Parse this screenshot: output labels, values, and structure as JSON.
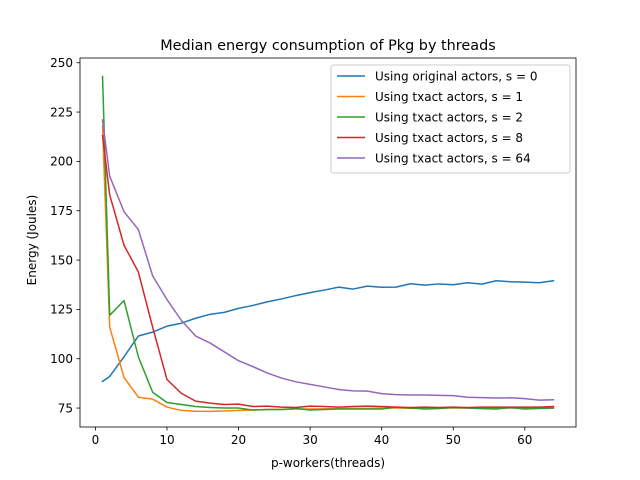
{
  "chart_data": {
    "type": "line",
    "title": "Median energy consumption of Pkg by threads",
    "xlabel": "p-workers(threads)",
    "ylabel": "Energy (Joules)",
    "xlim": [
      -2.15,
      67.15
    ],
    "ylim": [
      65.4,
      252.4
    ],
    "xticks": [
      0,
      10,
      20,
      30,
      40,
      50,
      60
    ],
    "yticks": [
      75,
      100,
      125,
      150,
      175,
      200,
      225,
      250
    ],
    "grid": false,
    "legend_position": "top-right",
    "series": [
      {
        "name": "Using original actors, s = 0",
        "color": "#1f77b4",
        "x": [
          1,
          2,
          4,
          6,
          8,
          10,
          12,
          14,
          16,
          18,
          20,
          22,
          24,
          26,
          28,
          30,
          32,
          34,
          36,
          38,
          40,
          42,
          44,
          46,
          48,
          50,
          52,
          54,
          56,
          58,
          60,
          62,
          64
        ],
        "y": [
          88.5,
          91,
          101,
          111.5,
          113.5,
          116.5,
          118,
          120.5,
          122.5,
          123.5,
          125.5,
          127,
          128.8,
          130.3,
          132,
          133.5,
          134.8,
          136.3,
          135.3,
          136.8,
          136.2,
          136.3,
          138,
          137.3,
          137.9,
          137.5,
          138.5,
          137.8,
          139.5,
          139,
          138.8,
          138.5,
          139.5
        ]
      },
      {
        "name": "Using txact actors, s = 1",
        "color": "#ff7f0e",
        "x": [
          1,
          2,
          4,
          6,
          8,
          10,
          12,
          14,
          16,
          18,
          20,
          22,
          24,
          26,
          28,
          30,
          32,
          34,
          36,
          38,
          40,
          42,
          44,
          46,
          48,
          50,
          52,
          54,
          56,
          58,
          60,
          62,
          64
        ],
        "y": [
          218,
          116,
          90.5,
          80.5,
          79.5,
          75.5,
          73.8,
          73.4,
          73.3,
          73.5,
          73.8,
          74,
          74.3,
          74.3,
          74.5,
          74.5,
          74.6,
          74.7,
          74.8,
          74.8,
          75,
          75,
          74.9,
          74.9,
          75,
          75,
          75,
          75,
          75,
          75,
          75,
          75,
          75
        ]
      },
      {
        "name": "Using txact actors, s = 2",
        "color": "#2ca02c",
        "x": [
          1,
          2,
          4,
          6,
          8,
          10,
          12,
          14,
          16,
          18,
          20,
          22,
          24,
          26,
          28,
          30,
          32,
          34,
          36,
          38,
          40,
          42,
          44,
          46,
          48,
          50,
          52,
          54,
          56,
          58,
          60,
          62,
          64
        ],
        "y": [
          243,
          122,
          129.5,
          101,
          83,
          77.8,
          76.8,
          75.8,
          75.3,
          75,
          75,
          74,
          74.3,
          74.3,
          74.8,
          74,
          74.3,
          74.5,
          74.5,
          74.5,
          74.5,
          75.5,
          75,
          74.5,
          74.8,
          75.3,
          75,
          74.7,
          74.5,
          75.2,
          74.5,
          74.8,
          75
        ]
      },
      {
        "name": "Using txact actors, s = 8",
        "color": "#d62728",
        "x": [
          1,
          2,
          4,
          6,
          8,
          10,
          12,
          14,
          16,
          18,
          20,
          22,
          24,
          26,
          28,
          30,
          32,
          34,
          36,
          38,
          40,
          42,
          44,
          46,
          48,
          50,
          52,
          54,
          56,
          58,
          60,
          62,
          64
        ],
        "y": [
          213,
          183,
          157.5,
          144,
          116,
          89.5,
          82.5,
          78.5,
          77.5,
          76.8,
          77,
          75.8,
          76,
          75.5,
          75.3,
          76,
          75.8,
          75.5,
          75.8,
          76,
          75.8,
          75.5,
          75.3,
          75.5,
          75.3,
          75.5,
          75.3,
          75.5,
          75.5,
          75.5,
          75.5,
          75.5,
          75.8
        ]
      },
      {
        "name": "Using txact actors, s = 64",
        "color": "#9467bd",
        "x": [
          1,
          2,
          4,
          6,
          8,
          10,
          12,
          14,
          16,
          18,
          20,
          22,
          24,
          26,
          28,
          30,
          32,
          34,
          36,
          38,
          40,
          42,
          44,
          46,
          48,
          50,
          52,
          54,
          56,
          58,
          60,
          62,
          64
        ],
        "y": [
          221,
          192.5,
          174.5,
          165.5,
          142,
          130,
          119.5,
          111.5,
          108,
          103.5,
          99,
          96,
          92.8,
          90.2,
          88.3,
          87,
          85.7,
          84.4,
          83.7,
          83.6,
          82.3,
          81.8,
          81.6,
          81.6,
          81.4,
          81.3,
          80.5,
          80.3,
          80.1,
          80.2,
          79.8,
          79,
          79.2
        ]
      }
    ]
  }
}
